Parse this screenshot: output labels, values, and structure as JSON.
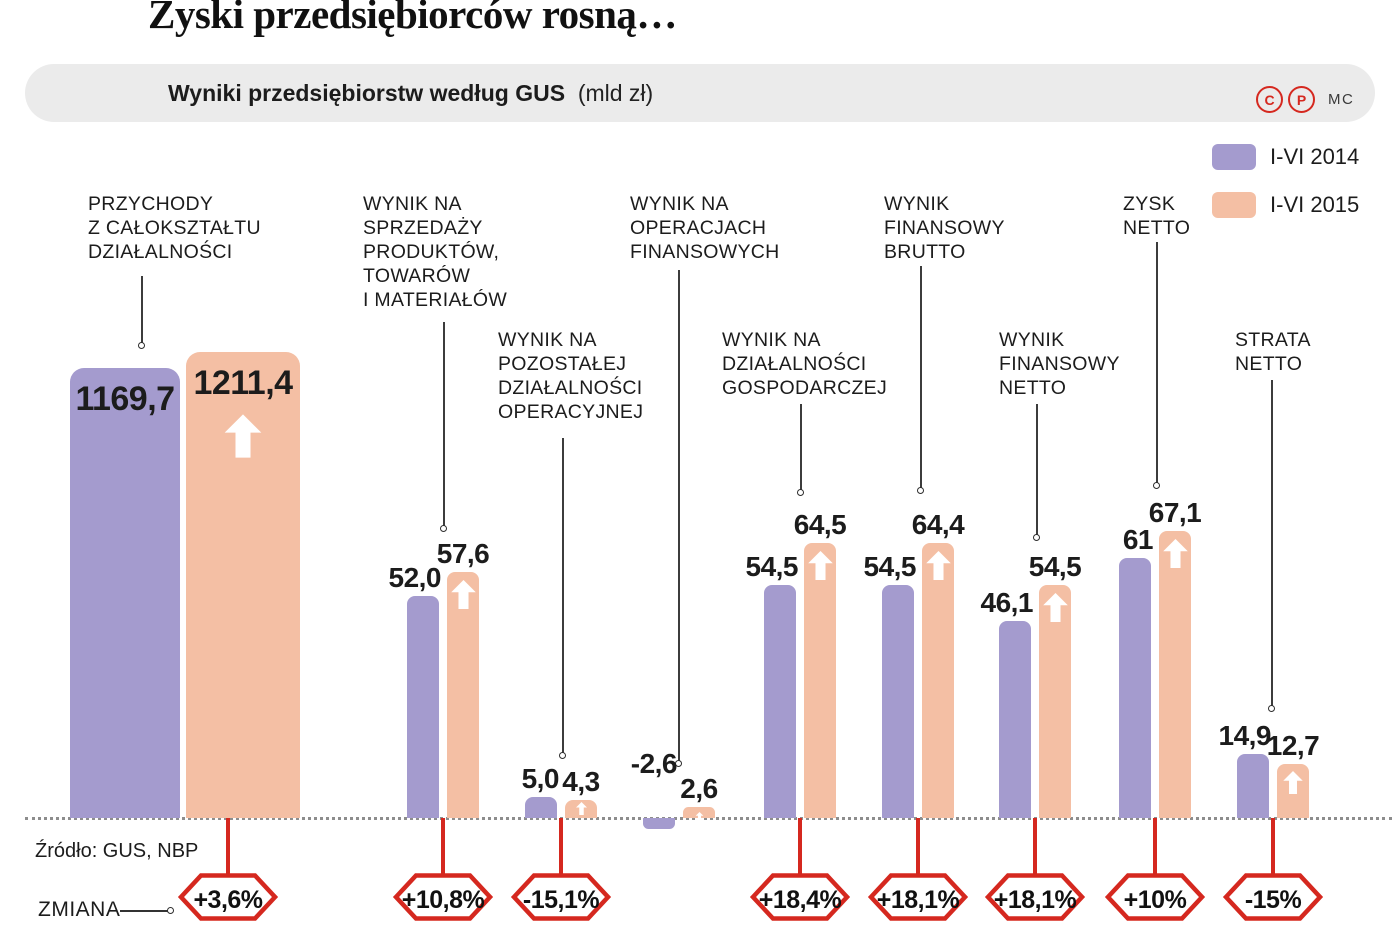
{
  "title": "Zyski przedsiębiorców rosną…",
  "header": {
    "subtitle_bold": "Wyniki przedsiębiorstw według GUS",
    "subtitle_unit": "(mld zł)",
    "logo_c": "C",
    "logo_p": "P",
    "logo_mc": "MC"
  },
  "legend": [
    {
      "label": "I-VI 2014",
      "color": "#a49bce"
    },
    {
      "label": "I-VI 2015",
      "color": "#f4bfa4"
    }
  ],
  "source": "Źródło: GUS, NBP",
  "change_label": "ZMIANA",
  "colors": {
    "purple_2014": "#a49bce",
    "salmon_2015": "#f4bfa4",
    "red_accent": "#d5281f",
    "band_gray": "#ebebeb",
    "text": "#1c1c1c"
  },
  "chart_data": {
    "type": "bar",
    "title": "Wyniki przedsiębiorstw według GUS",
    "unit": "mld zł",
    "series_names": [
      "I-VI 2014",
      "I-VI 2015"
    ],
    "legend_position": "top-right",
    "baseline": 0,
    "groups": [
      {
        "label": "PRZYCHODY\nZ CAŁOKSZTAŁTU\nDZIAŁALNOŚCI",
        "v2014": 1169.7,
        "v2015": 1211.4,
        "d2014": "1169,7",
        "d2015": "1211,4",
        "change": "+3,6%"
      },
      {
        "label": "WYNIK NA\nSPRZEDAŻY\nPRODUKTÓW,\nTOWARÓW\nI MATERIAŁÓW",
        "v2014": 52.0,
        "v2015": 57.6,
        "d2014": "52,0",
        "d2015": "57,6",
        "change": "+10,8%"
      },
      {
        "label": "WYNIK NA\nPOZOSTAŁEJ\nDZIAŁALNOŚCI\nOPERACYJNEJ",
        "v2014": 5.0,
        "v2015": 4.3,
        "d2014": "5,0",
        "d2015": "4,3",
        "change": "-15,1%"
      },
      {
        "label": "WYNIK NA\nOPERACJACH\nFINANSOWYCH",
        "v2014": -2.6,
        "v2015": 2.6,
        "d2014": "-2,6",
        "d2015": "2,6",
        "change": null
      },
      {
        "label": "WYNIK NA\nDZIAŁALNOŚCI\nGOSPODARCZEJ",
        "v2014": 54.5,
        "v2015": 64.5,
        "d2014": "54,5",
        "d2015": "64,5",
        "change": "+18,4%"
      },
      {
        "label": "WYNIK\nFINANSOWY\nBRUTTO",
        "v2014": 54.5,
        "v2015": 64.4,
        "d2014": "54,5",
        "d2015": "64,4",
        "change": "+18,1%"
      },
      {
        "label": "WYNIK\nFINANSOWY\nNETTO",
        "v2014": 46.1,
        "v2015": 54.5,
        "d2014": "46,1",
        "d2015": "54,5",
        "change": "+18,1%"
      },
      {
        "label": "ZYSK\nNETTO",
        "v2014": 61,
        "v2015": 67.1,
        "d2014": "61",
        "d2015": "67,1",
        "change": "+10%"
      },
      {
        "label": "STRATA\nNETTO",
        "v2014": 14.9,
        "v2015": 12.7,
        "d2014": "14,9",
        "d2015": "12,7",
        "change": "-15%"
      }
    ]
  }
}
